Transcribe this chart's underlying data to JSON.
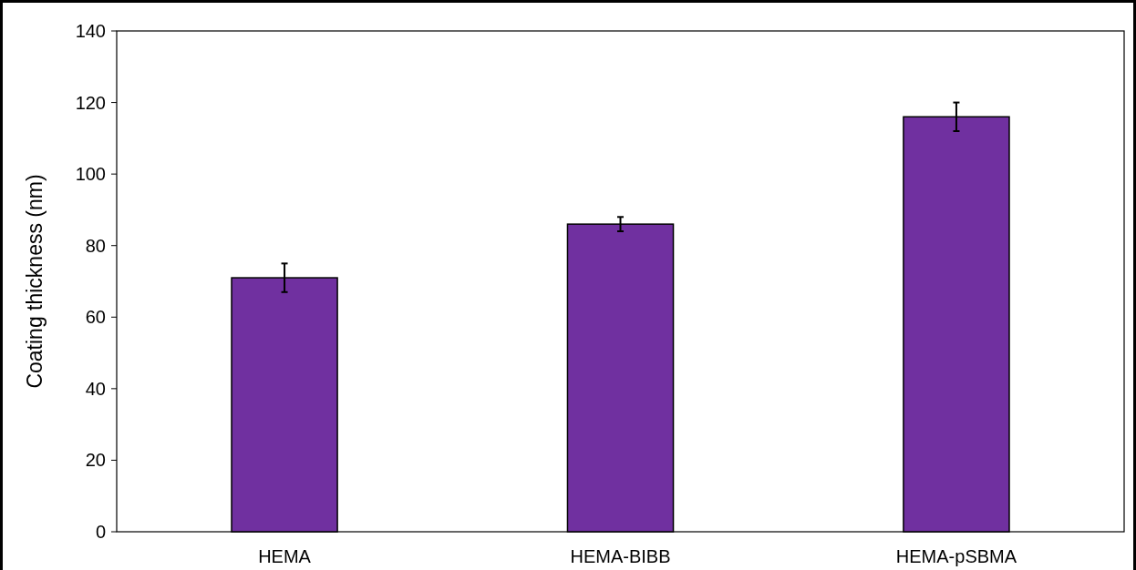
{
  "chart_data": {
    "type": "bar",
    "ylabel": "Coating thickness (nm)",
    "categories": [
      "HEMA",
      "HEMA-BIBB",
      "HEMA-pSBMA"
    ],
    "values": [
      71,
      86,
      116
    ],
    "errors": [
      4,
      2,
      4
    ],
    "color": "#7030a0",
    "ylim": [
      0,
      140
    ],
    "yticks": [
      0,
      20,
      40,
      60,
      80,
      100,
      120,
      140
    ],
    "grid": false
  }
}
